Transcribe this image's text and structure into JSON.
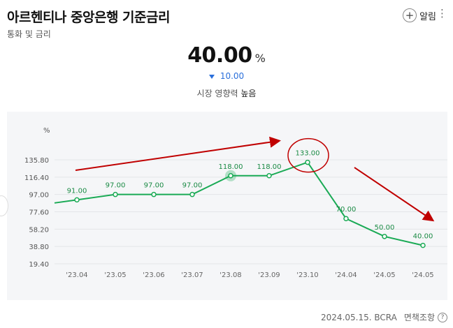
{
  "header": {
    "title": "아르헨티나 중앙은행 기준금리",
    "subtitle": "통화 및 금리",
    "alert_label": "알림",
    "alert_icon": "plus-circle-icon",
    "more_icon": "more-vertical-icon"
  },
  "summary": {
    "value": "40.00",
    "unit": "%",
    "change": "10.00",
    "change_direction": "down",
    "impact_label": "시장 영향력",
    "impact_value": "높음"
  },
  "footer": {
    "source": "2024.05.15. BCRA",
    "disclaimer": "면책조항"
  },
  "chart_data": {
    "type": "line",
    "ylabel": "%",
    "y_ticks": [
      "135.80",
      "116.40",
      "97.00",
      "77.60",
      "58.20",
      "38.80",
      "19.40"
    ],
    "y_tick_values": [
      135.8,
      116.4,
      97.0,
      77.6,
      58.2,
      38.8,
      19.4
    ],
    "ylim": [
      19.4,
      135.8
    ],
    "grid": true,
    "categories": [
      "'23.04",
      "'23.05",
      "'23.06",
      "'23.07",
      "'23.08",
      "'23.09",
      "'23.10",
      "'24.04",
      "'24.05",
      "'24.05"
    ],
    "values": [
      91.0,
      97.0,
      97.0,
      97.0,
      118.0,
      118.0,
      133.0,
      70.0,
      50.0,
      40.0
    ],
    "value_labels": [
      "91.00",
      "97.00",
      "97.00",
      "97.00",
      "118.00",
      "118.00",
      "133.00",
      "70.00",
      "50.00",
      "40.00"
    ],
    "line_color": "#1aaa55",
    "highlight_index": 4,
    "annotation_color": "#c00000"
  }
}
